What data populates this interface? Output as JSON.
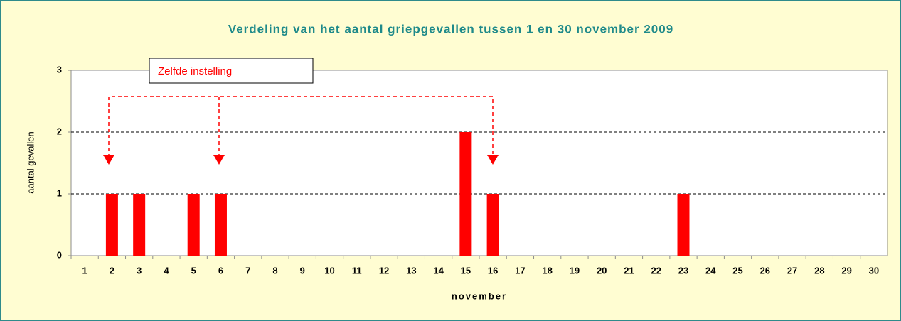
{
  "chart_data": {
    "type": "bar",
    "title": "Verdeling van het aantal griepgevallen tussen 1 en 30 november 2009",
    "x_label": "november",
    "y_label": "aantal gevallen",
    "annotation": "Zelfde instelling",
    "categories": [
      "1",
      "2",
      "3",
      "4",
      "5",
      "6",
      "7",
      "8",
      "9",
      "10",
      "11",
      "12",
      "13",
      "14",
      "15",
      "16",
      "17",
      "18",
      "19",
      "20",
      "21",
      "22",
      "23",
      "24",
      "25",
      "26",
      "27",
      "28",
      "29",
      "30"
    ],
    "values": [
      0,
      1,
      1,
      0,
      1,
      1,
      0,
      0,
      0,
      0,
      0,
      0,
      0,
      0,
      2,
      1,
      0,
      0,
      0,
      0,
      0,
      0,
      1,
      0,
      0,
      0,
      0,
      0,
      0,
      0
    ],
    "color": "#ff0000",
    "ylim": [
      0,
      3
    ],
    "yticks": [
      0,
      1,
      2,
      3
    ],
    "grid": true
  }
}
